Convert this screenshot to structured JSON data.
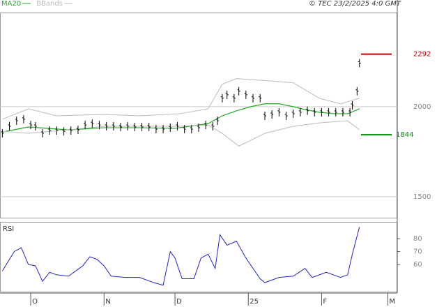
{
  "chart_data": [
    {
      "type": "price",
      "source": "© TEC 23/2/2025 4:0 GMT",
      "xlim": [
        -13,
        155
      ],
      "ylim": [
        1383,
        2523
      ],
      "yticks": [
        2000,
        1500
      ],
      "grid": true,
      "price": {
        "color": "#000000",
        "x": [
          -12,
          -9,
          -6,
          -3,
          0,
          2,
          5,
          8,
          11,
          14,
          17,
          20,
          23,
          26,
          29,
          32,
          35,
          38,
          41,
          44,
          47,
          50,
          53,
          56,
          59,
          62,
          65,
          68,
          71,
          74,
          77,
          79,
          81,
          83,
          86,
          88,
          91,
          94,
          97,
          99,
          102,
          105,
          108,
          111,
          114,
          117,
          120,
          123,
          126,
          129,
          132,
          135,
          136,
          138,
          139
        ],
        "values": [
          1852,
          1891,
          1922,
          1930,
          1898,
          1891,
          1852,
          1867,
          1867,
          1863,
          1867,
          1871,
          1898,
          1906,
          1898,
          1891,
          1891,
          1887,
          1891,
          1887,
          1887,
          1887,
          1875,
          1875,
          1883,
          1891,
          1875,
          1875,
          1883,
          1898,
          1891,
          1922,
          2047,
          2066,
          2047,
          2086,
          2066,
          2047,
          2047,
          1949,
          1957,
          1969,
          1949,
          1961,
          1969,
          1977,
          1969,
          1969,
          1969,
          1969,
          1969,
          1969,
          2008,
          2086,
          2242
        ]
      },
      "series": [
        {
          "name": "MA20",
          "color": "#22aa22",
          "x": [
            -12,
            -1,
            16,
            31,
            46,
            61,
            75,
            81,
            87,
            93,
            99,
            105,
            111,
            116,
            122,
            128,
            134,
            139
          ],
          "values": [
            1859,
            1887,
            1871,
            1883,
            1883,
            1879,
            1906,
            1949,
            1977,
            2000,
            2016,
            2016,
            2000,
            1984,
            1969,
            1961,
            1961,
            1988
          ]
        },
        {
          "name": "BBands",
          "color": "#bbbbbb",
          "upper": {
            "x": [
              -12,
              -1,
              11,
              31,
              46,
              63,
              75,
              81,
              87,
              99,
              111,
              116,
              122,
              131,
              139
            ],
            "values": [
              1930,
              1988,
              1949,
              1957,
              1949,
              1961,
              1988,
              2125,
              2156,
              2145,
              2133,
              2094,
              2047,
              2016,
              2047
            ]
          },
          "lower": {
            "x": [
              -12,
              -1,
              16,
              31,
              46,
              63,
              75,
              81,
              88,
              99,
              111,
              122,
              134,
              139
            ],
            "values": [
              1863,
              1852,
              1871,
              1891,
              1891,
              1891,
              1898,
              1852,
              1781,
              1852,
              1891,
              1910,
              1922,
              1871
            ]
          }
        }
      ],
      "levels": [
        {
          "value": 2292,
          "color": "#cc0000"
        },
        {
          "value": 1844,
          "color": "#008800"
        }
      ]
    },
    {
      "type": "line",
      "title": "RSI",
      "xlim": [
        -13,
        155
      ],
      "xticks": [
        {
          "value": 0,
          "label": "O"
        },
        {
          "value": 31,
          "label": "N"
        },
        {
          "value": 61,
          "label": "D"
        },
        {
          "value": 92,
          "label": "25"
        },
        {
          "value": 123,
          "label": "F"
        },
        {
          "value": 151,
          "label": "M"
        }
      ],
      "ylim": [
        39,
        93
      ],
      "yticks": [
        80,
        70,
        60
      ],
      "series": [
        {
          "color": "#2222cc",
          "x": [
            -12,
            -7,
            -4,
            -1,
            2,
            5,
            8,
            11,
            16,
            22,
            25,
            28,
            31,
            34,
            40,
            46,
            52,
            56,
            59,
            61,
            64,
            69,
            72,
            75,
            78,
            80,
            83,
            87,
            91,
            97,
            99,
            105,
            111,
            116,
            119,
            125,
            131,
            134,
            136,
            139
          ],
          "values": [
            55,
            70,
            73,
            60,
            59,
            47,
            54,
            52,
            51,
            59,
            66,
            64,
            59,
            51,
            50,
            50,
            46,
            44,
            70,
            65,
            49,
            49,
            65,
            68,
            57,
            83,
            75,
            78,
            65,
            49,
            46,
            50,
            51,
            57,
            50,
            54,
            50,
            52,
            68,
            89
          ]
        }
      ]
    }
  ]
}
